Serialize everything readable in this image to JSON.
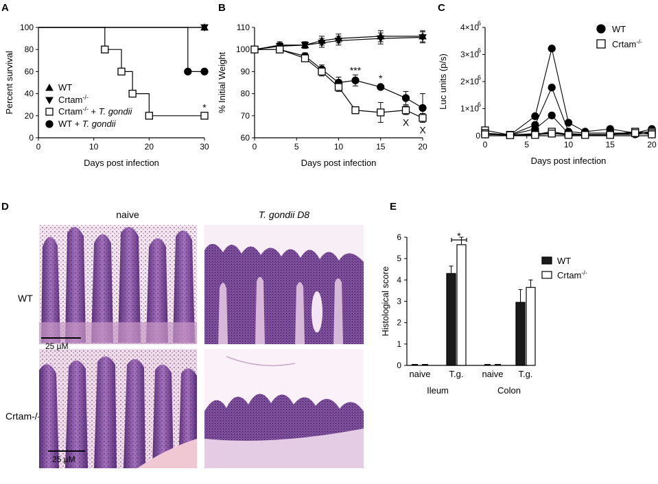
{
  "colors": {
    "axis": "#000000",
    "filled_marker": "#000000",
    "open_marker": "#ffffff",
    "bar_wt": "#1a1a1a",
    "bar_ko": "#ffffff",
    "he_stain_light": "#e8c8e0",
    "he_stain_dark": "#6a3a8a",
    "he_mucosa": "#a070b8",
    "he_background_naive": "#f3e4ee",
    "he_background_inf": "#f8eef6",
    "scale_bar": "#000000"
  },
  "panels": {
    "A": {
      "letter": "A"
    },
    "B": {
      "letter": "B"
    },
    "C": {
      "letter": "C"
    },
    "D": {
      "letter": "D",
      "col_labels": [
        "naive",
        "T. gondii D8"
      ],
      "row_labels": [
        "WT",
        "Crtam-/-"
      ],
      "scale_text": "25 µM"
    },
    "E": {
      "letter": "E"
    }
  },
  "chart_data": [
    {
      "id": "A",
      "type": "line",
      "step": true,
      "xlabel": "Days post infection",
      "ylabel": "Percent survival",
      "xlim": [
        0,
        30
      ],
      "ylim": [
        0,
        100
      ],
      "xticks": [
        0,
        10,
        20,
        30
      ],
      "yticks": [
        0,
        20,
        40,
        60,
        80,
        100
      ],
      "legend_position": "left",
      "series": [
        {
          "name": "WT",
          "marker": "triangle-up",
          "fill": "filled",
          "x": [
            0,
            30
          ],
          "y": [
            100,
            100
          ]
        },
        {
          "name": "Crtam-/-",
          "marker": "triangle-down",
          "fill": "filled",
          "x": [
            0,
            30
          ],
          "y": [
            100,
            100
          ]
        },
        {
          "name": "Crtam-/- + T. gondii",
          "marker": "square",
          "fill": "open",
          "x": [
            0,
            12,
            15,
            17,
            20,
            30
          ],
          "y": [
            100,
            80,
            60,
            40,
            20,
            20
          ]
        },
        {
          "name": "WT + T. gondii",
          "marker": "circle",
          "fill": "filled",
          "x": [
            0,
            27,
            30
          ],
          "y": [
            100,
            60,
            60
          ]
        }
      ],
      "annotations": [
        {
          "text": "*",
          "x": 30,
          "y": 27
        }
      ]
    },
    {
      "id": "B",
      "type": "line",
      "xlabel": "Days post infection",
      "ylabel": "% Initial  Weight",
      "xlim": [
        0,
        20
      ],
      "ylim": [
        60,
        110
      ],
      "xticks": [
        0,
        5,
        10,
        15,
        20
      ],
      "yticks": [
        60,
        70,
        80,
        90,
        100,
        110
      ],
      "series": [
        {
          "marker": "triangle-up",
          "fill": "filled",
          "x": [
            0,
            3,
            6,
            8,
            10,
            15,
            20
          ],
          "y": [
            100,
            102,
            102,
            104,
            105,
            106,
            106
          ],
          "err": [
            0,
            1.5,
            1.5,
            2,
            2,
            2.5,
            2.5
          ]
        },
        {
          "marker": "triangle-down",
          "fill": "filled",
          "x": [
            0,
            3,
            6,
            8,
            10,
            15,
            20
          ],
          "y": [
            100,
            101.5,
            102,
            103,
            104,
            105,
            105.5
          ],
          "err": [
            0,
            1.5,
            1.5,
            2,
            2,
            2.5,
            2.5
          ]
        },
        {
          "marker": "circle",
          "fill": "filled",
          "x": [
            0,
            3,
            6,
            8,
            10,
            12,
            15,
            18,
            20
          ],
          "y": [
            100,
            100,
            97,
            91,
            85,
            86,
            83,
            78,
            73.5
          ],
          "err": [
            0,
            1,
            1.5,
            2,
            2.5,
            2.5,
            1,
            3,
            6.5
          ]
        },
        {
          "marker": "square",
          "fill": "open",
          "x": [
            0,
            3,
            6,
            8,
            10,
            12,
            15,
            18,
            20
          ],
          "y": [
            100,
            100,
            96,
            90,
            83,
            72.5,
            71.5,
            72.5,
            69
          ],
          "err": [
            0,
            1,
            1.5,
            2,
            2,
            1.5,
            4.5,
            2,
            2
          ]
        }
      ],
      "annotations": [
        {
          "text": "***",
          "x": 12,
          "y": 89
        },
        {
          "text": "*",
          "x": 15,
          "y": 85.5
        },
        {
          "text": "X",
          "x": 18,
          "y": 65.5
        },
        {
          "text": "X",
          "x": 20,
          "y": 62
        }
      ]
    },
    {
      "id": "C",
      "type": "line",
      "xlabel": "Days post infection",
      "ylabel": "Luc units (p/s)",
      "xlim": [
        0,
        20
      ],
      "ylim": [
        0,
        4000000
      ],
      "xticks": [
        0,
        5,
        10,
        15,
        20
      ],
      "ytick_values": [
        0,
        1000000,
        2000000,
        3000000,
        4000000
      ],
      "ytick_labels": [
        "0",
        "1×10 6",
        "2×10 6",
        "3×10 6",
        "4×10 6"
      ],
      "legend_position": "top-right",
      "series": [
        {
          "name": "WT",
          "marker": "circle",
          "fill": "filled",
          "x": [
            0,
            3,
            6,
            8,
            10,
            12,
            15,
            18,
            20
          ],
          "y": [
            50000,
            30000,
            720000,
            3220000,
            480000,
            150000,
            250000,
            100000,
            250000
          ]
        },
        {
          "marker": "circle",
          "fill": "filled",
          "x": [
            0,
            3,
            6,
            8,
            10,
            12,
            15,
            18,
            20
          ],
          "y": [
            50000,
            30000,
            400000,
            1780000,
            150000,
            100000,
            100000,
            100000,
            150000
          ]
        },
        {
          "marker": "circle",
          "fill": "filled",
          "x": [
            0,
            3,
            6,
            8,
            10,
            12,
            15,
            18,
            20
          ],
          "y": [
            50000,
            30000,
            250000,
            750000,
            80000,
            50000,
            50000,
            50000,
            100000
          ]
        },
        {
          "name": "Crtam-/-",
          "marker": "square",
          "fill": "open",
          "x": [
            0,
            3,
            6,
            8,
            10,
            12,
            15,
            18,
            20
          ],
          "y": [
            200000,
            30000,
            80000,
            100000,
            50000,
            50000,
            50000,
            100000,
            150000
          ]
        },
        {
          "marker": "square",
          "fill": "open",
          "x": [
            0,
            3,
            6,
            8,
            10,
            12,
            15,
            18,
            20
          ],
          "y": [
            100000,
            30000,
            50000,
            150000,
            50000,
            50000,
            50000,
            150000,
            100000
          ]
        },
        {
          "marker": "square",
          "fill": "open",
          "x": [
            0,
            3,
            6,
            8,
            10,
            12,
            15,
            18,
            20
          ],
          "y": [
            50000,
            20000,
            30000,
            80000,
            30000,
            30000,
            30000,
            100000,
            50000
          ]
        }
      ]
    },
    {
      "id": "E",
      "type": "bar",
      "ylabel": "Histological score",
      "ylim": [
        0,
        6
      ],
      "yticks": [
        0,
        1,
        2,
        3,
        4,
        5,
        6
      ],
      "categories": [
        "naive",
        "T.g.",
        "naive",
        "T.g."
      ],
      "groups": [
        "Ileum",
        "Colon"
      ],
      "legend_position": "right",
      "series": [
        {
          "name": "WT",
          "fill": "dark",
          "values": [
            0,
            4.3,
            0,
            2.95
          ],
          "err": [
            0,
            0.35,
            0,
            0.6
          ]
        },
        {
          "name": "Crtam-/-",
          "fill": "white",
          "values": [
            0,
            5.65,
            0,
            3.65
          ],
          "err": [
            0,
            0.35,
            0,
            0.35
          ]
        }
      ],
      "annotations": [
        {
          "text": "*"
        }
      ]
    }
  ]
}
